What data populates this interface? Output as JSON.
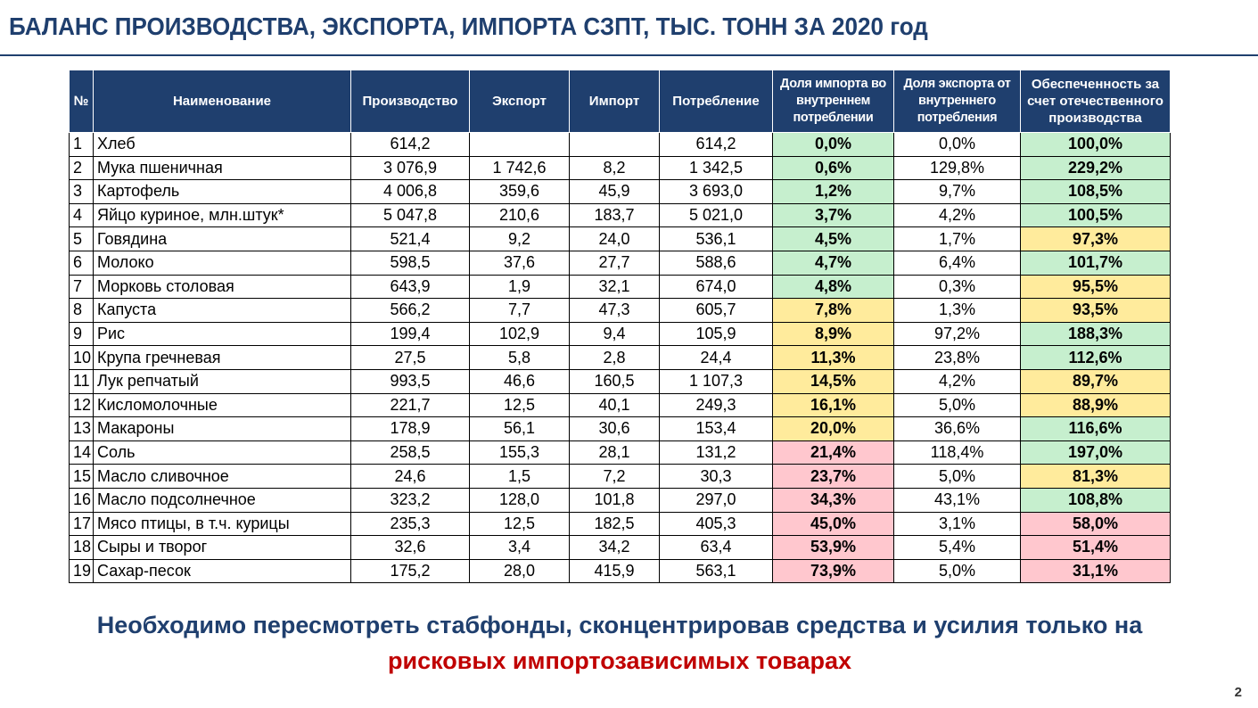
{
  "title": "БАЛАНС ПРОИЗВОДСТВА, ЭКСПОРТА, ИМПОРТА СЗПТ, ТЫС. ТОНН ЗА 2020 год",
  "table": {
    "headers": [
      "№",
      "Наименование",
      "Производство",
      "Экспорт",
      "Импорт",
      "Потребление",
      "Доля импорта во внутреннем потреблении",
      "Доля экспорта от внутреннего потребления",
      "Обеспеченность за счет отечественного производства"
    ],
    "rows": [
      {
        "n": "1",
        "name": "Хлеб",
        "prod": "614,2",
        "exp": "",
        "imp": "",
        "cons": "614,2",
        "imp_share": "0,0%",
        "imp_level": "g",
        "exp_share": "0,0%",
        "self": "100,0%",
        "self_level": "g"
      },
      {
        "n": "2",
        "name": "Мука пшеничная",
        "prod": "3 076,9",
        "exp": "1 742,6",
        "imp": "8,2",
        "cons": "1 342,5",
        "imp_share": "0,6%",
        "imp_level": "g",
        "exp_share": "129,8%",
        "self": "229,2%",
        "self_level": "g"
      },
      {
        "n": "3",
        "name": "Картофель",
        "prod": "4 006,8",
        "exp": "359,6",
        "imp": "45,9",
        "cons": "3 693,0",
        "imp_share": "1,2%",
        "imp_level": "g",
        "exp_share": "9,7%",
        "self": "108,5%",
        "self_level": "g"
      },
      {
        "n": "4",
        "name": "Яйцо куриное, млн.штук*",
        "prod": "5 047,8",
        "exp": "210,6",
        "imp": "183,7",
        "cons": "5 021,0",
        "imp_share": "3,7%",
        "imp_level": "g",
        "exp_share": "4,2%",
        "self": "100,5%",
        "self_level": "g"
      },
      {
        "n": "5",
        "name": "Говядина",
        "prod": "521,4",
        "exp": "9,2",
        "imp": "24,0",
        "cons": "536,1",
        "imp_share": "4,5%",
        "imp_level": "g",
        "exp_share": "1,7%",
        "self": "97,3%",
        "self_level": "y"
      },
      {
        "n": "6",
        "name": "Молоко",
        "prod": "598,5",
        "exp": "37,6",
        "imp": "27,7",
        "cons": "588,6",
        "imp_share": "4,7%",
        "imp_level": "g",
        "exp_share": "6,4%",
        "self": "101,7%",
        "self_level": "g"
      },
      {
        "n": "7",
        "name": "Морковь столовая",
        "prod": "643,9",
        "exp": "1,9",
        "imp": "32,1",
        "cons": "674,0",
        "imp_share": "4,8%",
        "imp_level": "g",
        "exp_share": "0,3%",
        "self": "95,5%",
        "self_level": "y"
      },
      {
        "n": "8",
        "name": "Капуста",
        "prod": "566,2",
        "exp": "7,7",
        "imp": "47,3",
        "cons": "605,7",
        "imp_share": "7,8%",
        "imp_level": "y",
        "exp_share": "1,3%",
        "self": "93,5%",
        "self_level": "y"
      },
      {
        "n": "9",
        "name": "Рис",
        "prod": "199,4",
        "exp": "102,9",
        "imp": "9,4",
        "cons": "105,9",
        "imp_share": "8,9%",
        "imp_level": "y",
        "exp_share": "97,2%",
        "self": "188,3%",
        "self_level": "g"
      },
      {
        "n": "10",
        "name": "Крупа гречневая",
        "prod": "27,5",
        "exp": "5,8",
        "imp": "2,8",
        "cons": "24,4",
        "imp_share": "11,3%",
        "imp_level": "y",
        "exp_share": "23,8%",
        "self": "112,6%",
        "self_level": "g"
      },
      {
        "n": "11",
        "name": "Лук репчатый",
        "prod": "993,5",
        "exp": "46,6",
        "imp": "160,5",
        "cons": "1 107,3",
        "imp_share": "14,5%",
        "imp_level": "y",
        "exp_share": "4,2%",
        "self": "89,7%",
        "self_level": "y"
      },
      {
        "n": "12",
        "name": "Кисломолочные",
        "prod": "221,7",
        "exp": "12,5",
        "imp": "40,1",
        "cons": "249,3",
        "imp_share": "16,1%",
        "imp_level": "y",
        "exp_share": "5,0%",
        "self": "88,9%",
        "self_level": "y"
      },
      {
        "n": "13",
        "name": "Макароны",
        "prod": "178,9",
        "exp": "56,1",
        "imp": "30,6",
        "cons": "153,4",
        "imp_share": "20,0%",
        "imp_level": "y",
        "exp_share": "36,6%",
        "self": "116,6%",
        "self_level": "g"
      },
      {
        "n": "14",
        "name": "Соль",
        "prod": "258,5",
        "exp": "155,3",
        "imp": "28,1",
        "cons": "131,2",
        "imp_share": "21,4%",
        "imp_level": "r",
        "exp_share": "118,4%",
        "self": "197,0%",
        "self_level": "g"
      },
      {
        "n": "15",
        "name": "Масло сливочное",
        "prod": "24,6",
        "exp": "1,5",
        "imp": "7,2",
        "cons": "30,3",
        "imp_share": "23,7%",
        "imp_level": "r",
        "exp_share": "5,0%",
        "self": "81,3%",
        "self_level": "y"
      },
      {
        "n": "16",
        "name": "Масло подсолнечное",
        "prod": "323,2",
        "exp": "128,0",
        "imp": "101,8",
        "cons": "297,0",
        "imp_share": "34,3%",
        "imp_level": "r",
        "exp_share": "43,1%",
        "self": "108,8%",
        "self_level": "g"
      },
      {
        "n": "17",
        "name": "Мясо птицы, в т.ч. курицы",
        "prod": "235,3",
        "exp": "12,5",
        "imp": "182,5",
        "cons": "405,3",
        "imp_share": "45,0%",
        "imp_level": "r",
        "exp_share": "3,1%",
        "self": "58,0%",
        "self_level": "r"
      },
      {
        "n": "18",
        "name": "Сыры и творог",
        "prod": "32,6",
        "exp": "3,4",
        "imp": "34,2",
        "cons": "63,4",
        "imp_share": "53,9%",
        "imp_level": "r",
        "exp_share": "5,4%",
        "self": "51,4%",
        "self_level": "r"
      },
      {
        "n": "19",
        "name": "Сахар-песок",
        "prod": "175,2",
        "exp": "28,0",
        "imp": "415,9",
        "cons": "563,1",
        "imp_share": "73,9%",
        "imp_level": "r",
        "exp_share": "5,0%",
        "self": "31,1%",
        "self_level": "r"
      }
    ]
  },
  "conclusion": {
    "line1": "Необходимо пересмотреть стабфонды, сконцентрировав средства и усилия только на",
    "line2": "рисковых импортозависимых товарах"
  },
  "page_number": "2",
  "colors": {
    "header_bg": "#1f3f6e",
    "good_bg": "#c6efce",
    "warn_bg": "#ffeb9c",
    "bad_bg": "#ffc7ce",
    "accent_red": "#c00000"
  }
}
